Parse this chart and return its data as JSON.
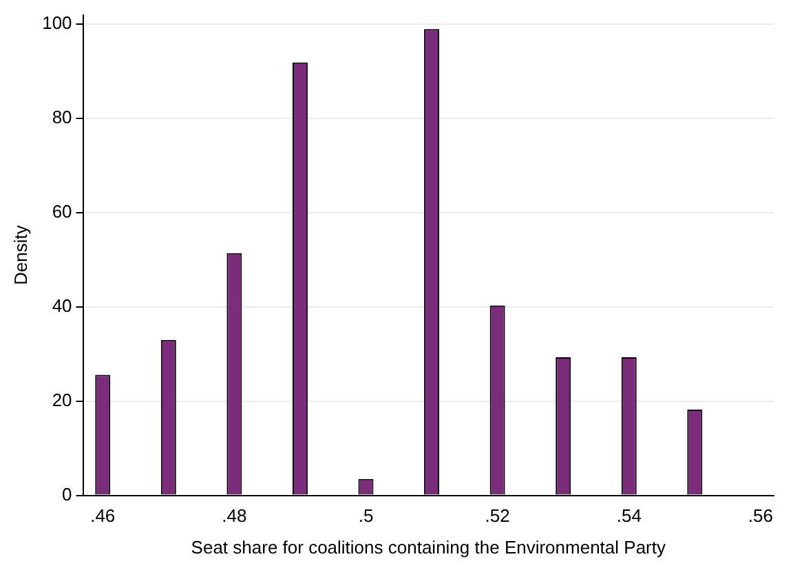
{
  "chart_data": {
    "type": "bar",
    "xlabel": "Seat share for coalitions containing the Environmental Party",
    "ylabel": "Density",
    "x": [
      0.46,
      0.47,
      0.48,
      0.49,
      0.5,
      0.51,
      0.52,
      0.53,
      0.54,
      0.55
    ],
    "values": [
      25.6,
      33,
      51.4,
      91.9,
      3.5,
      99,
      40.3,
      29.3,
      29.3,
      18.2
    ],
    "color": "#7b2d7b",
    "xlim": [
      0.457,
      0.562
    ],
    "xticks": [
      {
        "value": 0.46,
        "label": ".46"
      },
      {
        "value": 0.48,
        "label": ".48"
      },
      {
        "value": 0.5,
        "label": ".5"
      },
      {
        "value": 0.52,
        "label": ".52"
      },
      {
        "value": 0.54,
        "label": ".54"
      },
      {
        "value": 0.56,
        "label": ".56"
      }
    ],
    "ylim": [
      0,
      102
    ],
    "yticks": [
      0,
      20,
      40,
      60,
      80,
      100
    ],
    "grid": "y",
    "legend": false
  }
}
